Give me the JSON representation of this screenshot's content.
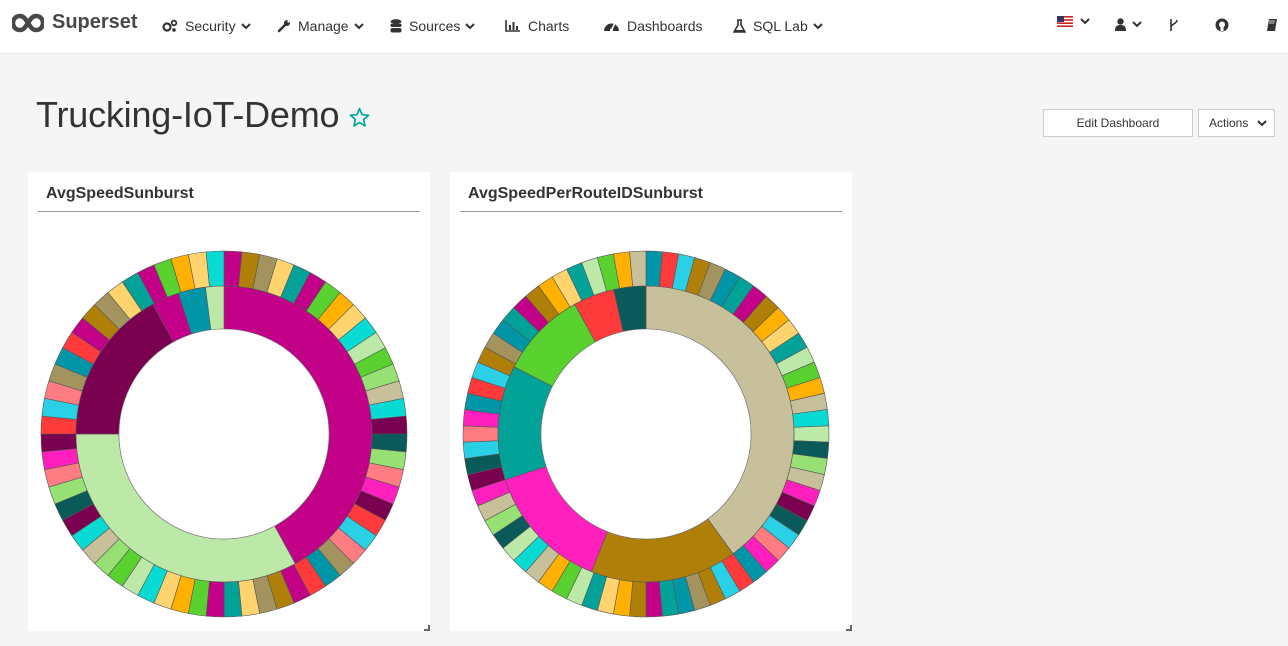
{
  "navbar": {
    "brand": "Superset",
    "items": [
      {
        "label": "Security",
        "icon": "cogs-icon",
        "dropdown": true
      },
      {
        "label": "Manage",
        "icon": "wrench-icon",
        "dropdown": true
      },
      {
        "label": "Sources",
        "icon": "database-icon",
        "dropdown": true
      },
      {
        "label": "Charts",
        "icon": "bar-chart-icon",
        "dropdown": false
      },
      {
        "label": "Dashboards",
        "icon": "dashboard-icon",
        "dropdown": false
      },
      {
        "label": "SQL Lab",
        "icon": "flask-icon",
        "dropdown": true
      }
    ],
    "right_icons": [
      "us-flag-icon",
      "user-icon",
      "git-branch-icon",
      "github-icon",
      "book-icon"
    ]
  },
  "dashboard": {
    "title": "Trucking-IoT-Demo",
    "favorite": false,
    "edit_label": "Edit Dashboard",
    "actions_label": "Actions"
  },
  "panels": [
    {
      "title": "AvgSpeedSunburst"
    },
    {
      "title": "AvgSpeedPerRouteIDSunburst"
    }
  ],
  "colors": {
    "accent": "#00a699",
    "palette": [
      "#c20088",
      "#bce8a8",
      "#7a0150",
      "#0096a8",
      "#ffd46e",
      "#c8c09a",
      "#ff7c82",
      "#b07f08",
      "#59d12f",
      "#0a5a5a",
      "#ff3a3a",
      "#02a298",
      "#08dbd4",
      "#ff1fbc",
      "#a3945f",
      "#ffb000",
      "#97e074",
      "#2ad1e6"
    ]
  },
  "chart_data": [
    {
      "type": "sunburst",
      "title": "AvgSpeedSunburst",
      "inner_ring": [
        {
          "color": "#c20088",
          "value": 0.42
        },
        {
          "color": "#bce8a8",
          "value": 0.33
        },
        {
          "color": "#7a0150",
          "value": 0.17
        },
        {
          "color": "#c20088",
          "value": 0.03
        },
        {
          "color": "#0096a8",
          "value": 0.03
        },
        {
          "color": "#bce8a8",
          "value": 0.02
        }
      ],
      "outer_segments": 64
    },
    {
      "type": "sunburst",
      "title": "AvgSpeedPerRouteIDSunburst",
      "inner_ring": [
        {
          "color": "#c8c09a",
          "value": 0.4
        },
        {
          "color": "#b07f08",
          "value": 0.16
        },
        {
          "color": "#ff1fbc",
          "value": 0.14
        },
        {
          "color": "#02a298",
          "value": 0.125
        },
        {
          "color": "#59d12f",
          "value": 0.095
        },
        {
          "color": "#ff3a3a",
          "value": 0.045
        },
        {
          "color": "#0a5a5a",
          "value": 0.035
        }
      ],
      "outer_segments": 70
    }
  ]
}
